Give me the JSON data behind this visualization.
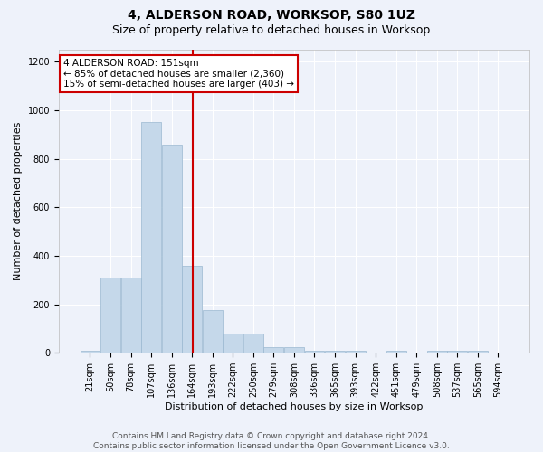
{
  "title": "4, ALDERSON ROAD, WORKSOP, S80 1UZ",
  "subtitle": "Size of property relative to detached houses in Worksop",
  "xlabel": "Distribution of detached houses by size in Worksop",
  "ylabel": "Number of detached properties",
  "footer_line1": "Contains HM Land Registry data © Crown copyright and database right 2024.",
  "footer_line2": "Contains public sector information licensed under the Open Government Licence v3.0.",
  "bin_labels": [
    "21sqm",
    "50sqm",
    "78sqm",
    "107sqm",
    "136sqm",
    "164sqm",
    "193sqm",
    "222sqm",
    "250sqm",
    "279sqm",
    "308sqm",
    "336sqm",
    "365sqm",
    "393sqm",
    "422sqm",
    "451sqm",
    "479sqm",
    "508sqm",
    "537sqm",
    "565sqm",
    "594sqm"
  ],
  "values": [
    10,
    310,
    310,
    950,
    860,
    360,
    175,
    80,
    80,
    25,
    25,
    10,
    10,
    10,
    0,
    10,
    0,
    10,
    10,
    10,
    0
  ],
  "bar_color": "#c5d8ea",
  "bar_edge_color": "#9ab8d0",
  "annotation_line1": "4 ALDERSON ROAD: 151sqm",
  "annotation_line2": "← 85% of detached houses are smaller (2,360)",
  "annotation_line3": "15% of semi-detached houses are larger (403) →",
  "ylim": [
    0,
    1250
  ],
  "yticks": [
    0,
    200,
    400,
    600,
    800,
    1000,
    1200
  ],
  "background_color": "#eef2fa",
  "plot_background_color": "#eef2fa",
  "grid_color": "#ffffff",
  "annotation_box_color": "#ffffff",
  "annotation_box_edge": "#cc0000",
  "red_line_color": "#cc0000",
  "title_fontsize": 10,
  "subtitle_fontsize": 9,
  "label_fontsize": 8,
  "tick_fontsize": 7,
  "footer_fontsize": 6.5,
  "annotation_fontsize": 7.5
}
